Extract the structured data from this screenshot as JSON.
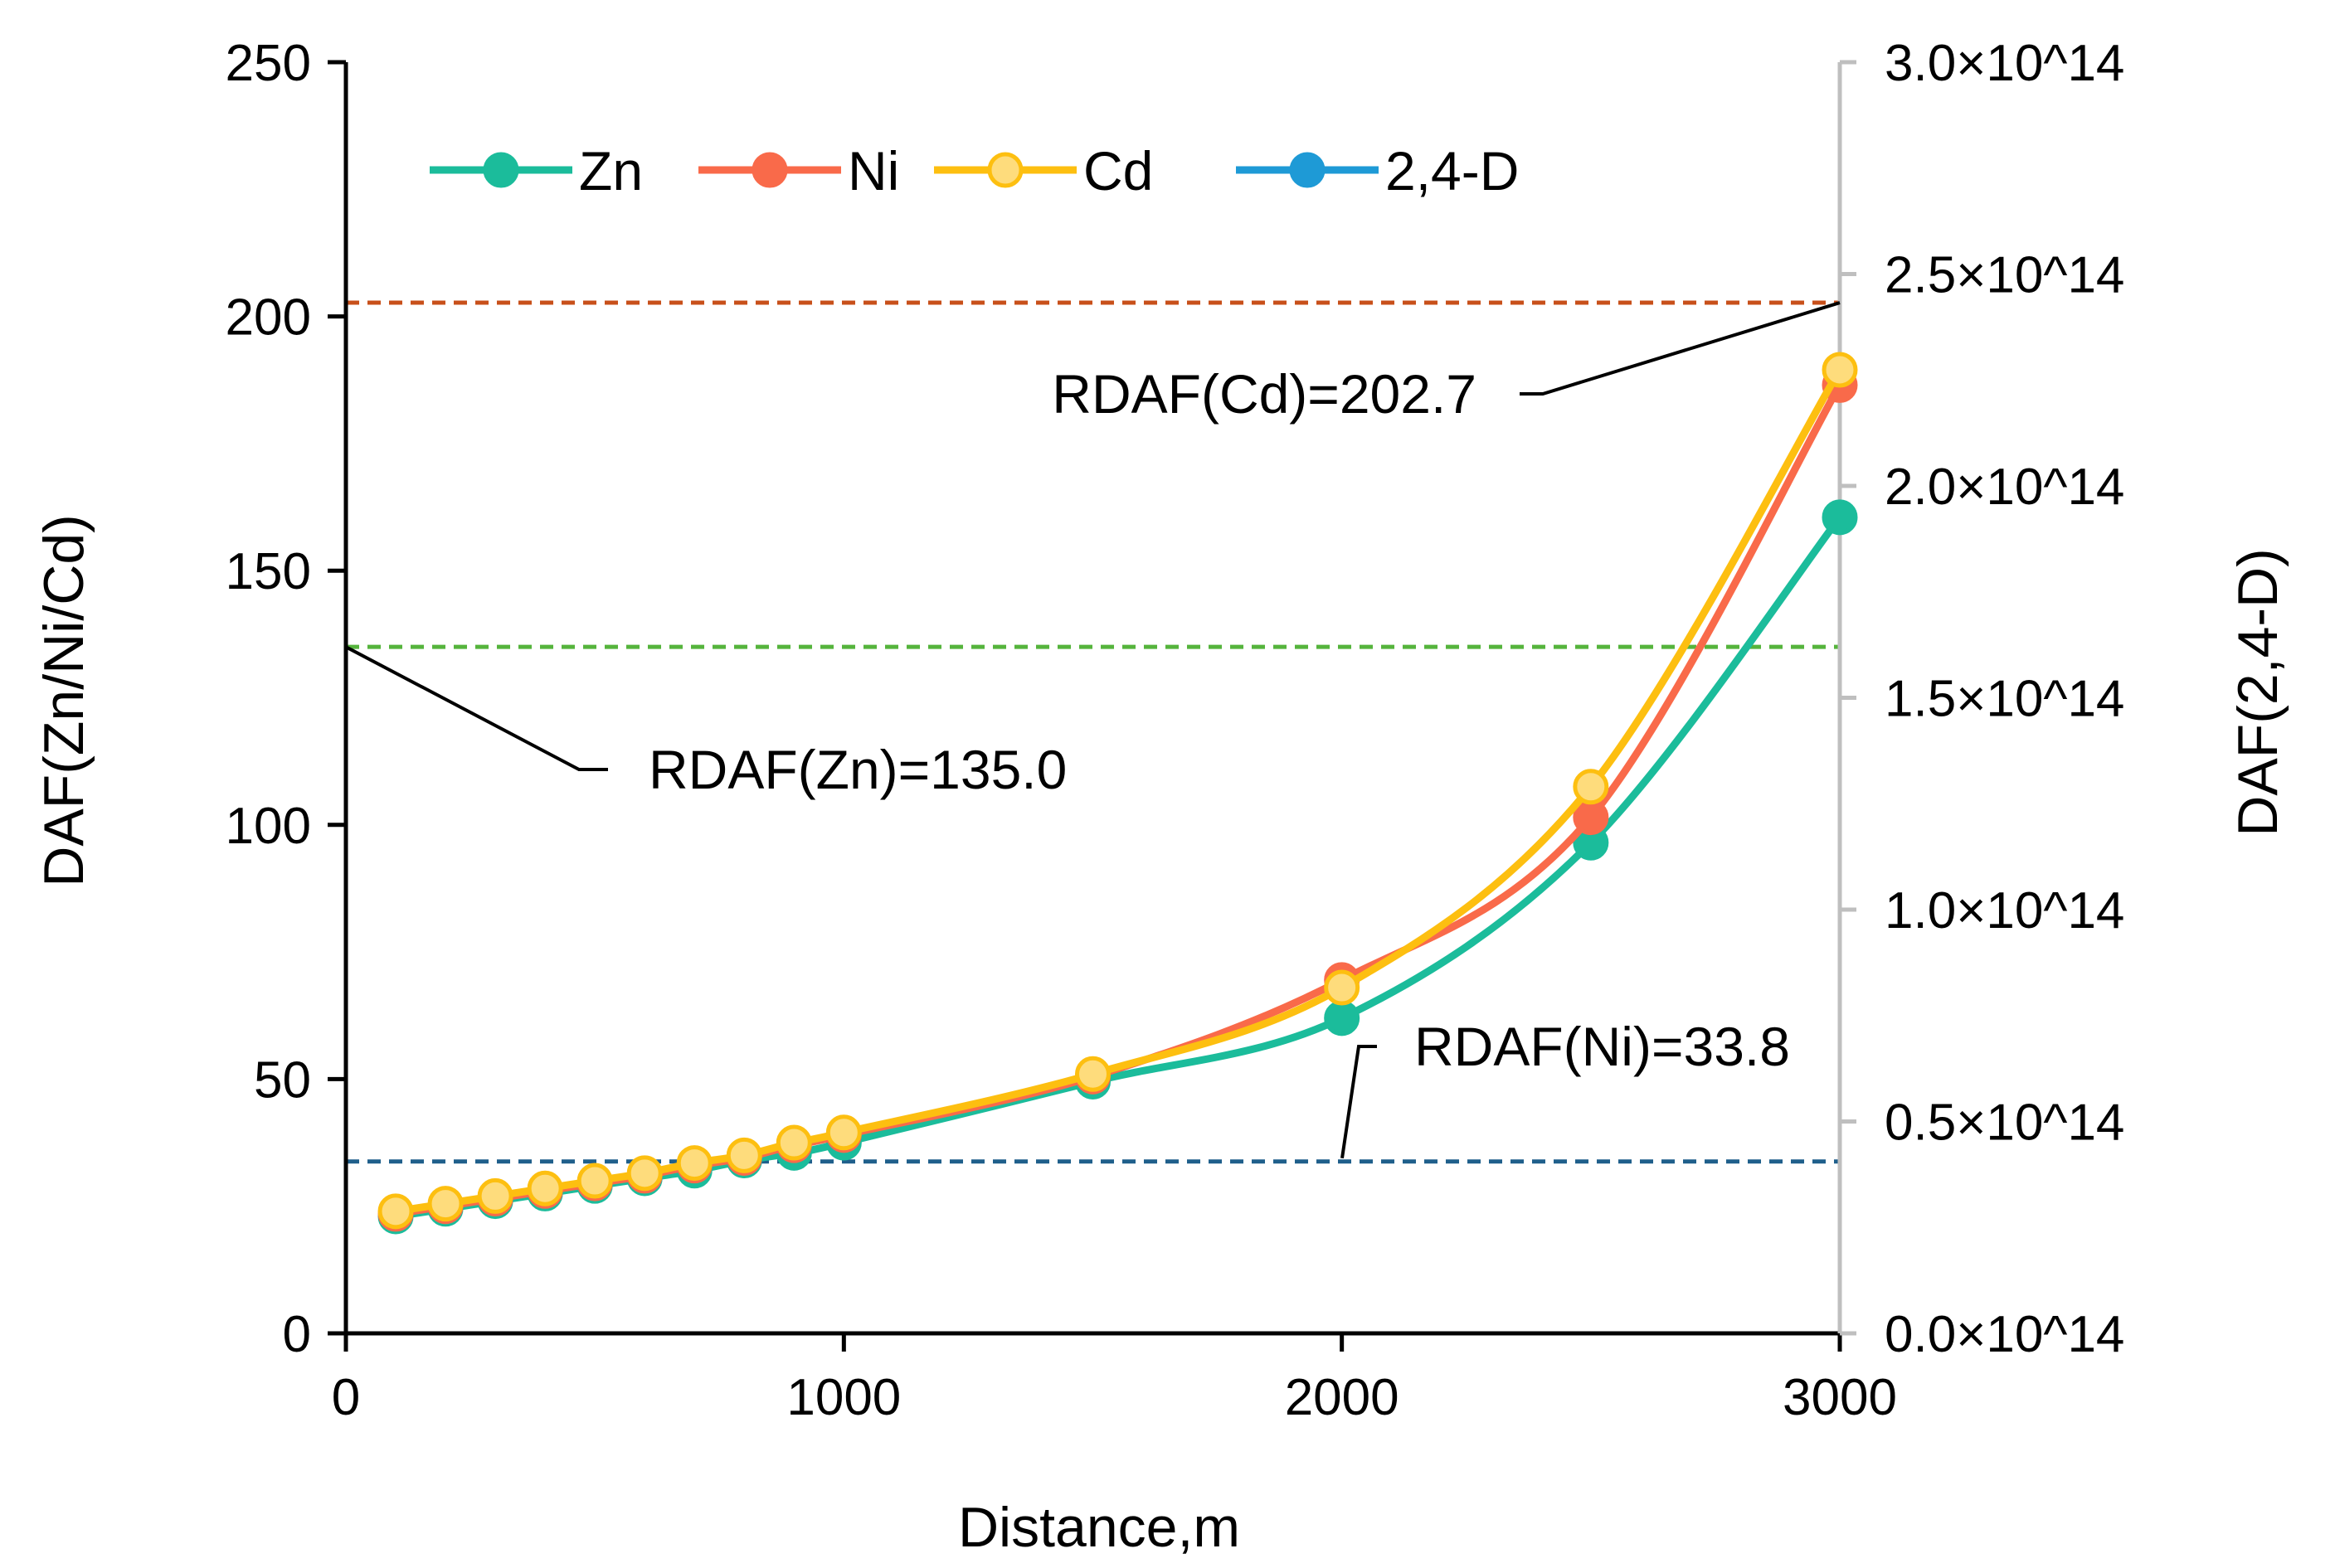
{
  "chart_data": {
    "type": "line",
    "title": "",
    "xlabel": "Distance,m",
    "ylabel": "DAF(Zn/Ni/Cd)",
    "y2label": "DAF(2,4-D)",
    "xlim": [
      0,
      3000
    ],
    "ylim": [
      0,
      250
    ],
    "y2lim": [
      0,
      3.0
    ],
    "x_ticks": [
      "0",
      "1000",
      "2000",
      "3000"
    ],
    "y_ticks": [
      "0",
      "50",
      "100",
      "150",
      "200",
      "250"
    ],
    "y2_ticks": [
      "0.0×10^14",
      "0.5×10^14",
      "1.0×10^14",
      "1.5×10^14",
      "2.0×10^14",
      "2.5×10^14",
      "3.0×10^14"
    ],
    "grid": false,
    "legend_position": "top-left",
    "series": [
      {
        "name": "Zn",
        "color": "#1bbc9b",
        "x": [
          100,
          200,
          300,
          400,
          500,
          600,
          700,
          800,
          900,
          1000,
          1500,
          2000,
          2500,
          3000
        ],
        "values": [
          23,
          24.5,
          26,
          27.5,
          29,
          30.5,
          32,
          34,
          35.5,
          37.5,
          49.5,
          62,
          96.5,
          160.5
        ]
      },
      {
        "name": "Ni",
        "color": "#f96a4a",
        "x": [
          100,
          200,
          300,
          400,
          500,
          600,
          700,
          800,
          900,
          1000,
          1500,
          2000,
          2500,
          3000
        ],
        "values": [
          23.5,
          25,
          26.5,
          28,
          29.5,
          31,
          33,
          34.5,
          37,
          39,
          50.5,
          69.5,
          101.5,
          186.5
        ]
      },
      {
        "name": "Cd",
        "color": "#fdbf10",
        "x": [
          100,
          200,
          300,
          400,
          500,
          600,
          700,
          800,
          900,
          1000,
          1500,
          2000,
          2500,
          3000
        ],
        "values": [
          24,
          25.5,
          27,
          28.5,
          30,
          31.5,
          33.5,
          35,
          37.5,
          39.5,
          51,
          68,
          107.5,
          189.5
        ]
      },
      {
        "name": "2,4-D",
        "color": "#1e9ad6",
        "axis": "right",
        "x": [],
        "values": []
      }
    ],
    "reference_lines": [
      {
        "label": "RDAF(Cd)=202.7",
        "value": 202.7,
        "color": "#c8501a"
      },
      {
        "label": "RDAF(Zn)=135.0",
        "value": 135.0,
        "color": "#55b43c"
      },
      {
        "label": "RDAF(Ni)=33.8",
        "value": 33.8,
        "color": "#1f5f8b"
      }
    ]
  }
}
